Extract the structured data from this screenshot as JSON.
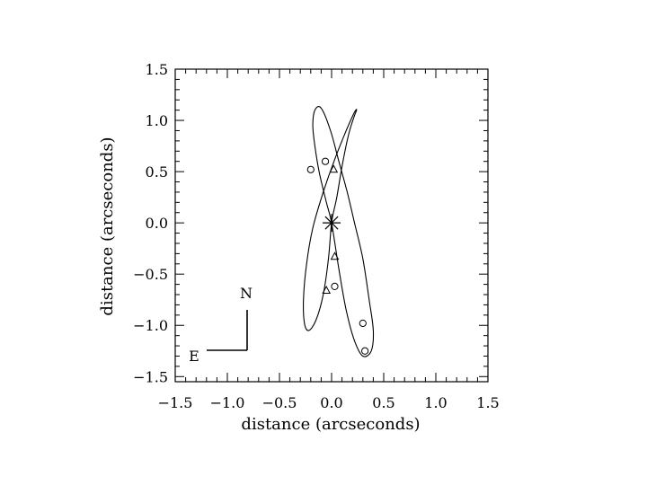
{
  "chart_data": {
    "type": "scatter",
    "title": "",
    "xlabel": "distance (arcseconds)",
    "ylabel": "distance (arcseconds)",
    "xlim": [
      -1.5,
      1.5
    ],
    "ylim": [
      -1.55,
      1.5
    ],
    "xticks": [
      -1.5,
      -1.0,
      -0.5,
      0.0,
      0.5,
      1.0,
      1.5
    ],
    "yticks": [
      -1.5,
      -1.0,
      -0.5,
      0.0,
      0.5,
      1.0,
      1.5
    ],
    "xtick_labels": [
      "−1.5",
      "−1.0",
      "−0.5",
      "0.0",
      "0.5",
      "1.0",
      "1.5"
    ],
    "ytick_labels": [
      "−1.5",
      "−1.0",
      "−0.5",
      "0.0",
      "0.5",
      "1.0",
      "1.5"
    ],
    "grid": false,
    "center_star": {
      "x": 0.0,
      "y": 0.0
    },
    "orbits": [
      {
        "path": [
          [
            0.0,
            0.0
          ],
          [
            -0.05,
            0.2
          ],
          [
            -0.12,
            0.5
          ],
          [
            -0.16,
            0.75
          ],
          [
            -0.18,
            0.95
          ],
          [
            -0.16,
            1.1
          ],
          [
            -0.1,
            1.12
          ],
          [
            -0.01,
            0.9
          ],
          [
            0.07,
            0.6
          ],
          [
            0.15,
            0.3
          ],
          [
            0.22,
            0.0
          ],
          [
            0.3,
            -0.35
          ],
          [
            0.36,
            -0.75
          ],
          [
            0.4,
            -1.05
          ],
          [
            0.38,
            -1.25
          ],
          [
            0.3,
            -1.3
          ],
          [
            0.22,
            -1.15
          ],
          [
            0.14,
            -0.85
          ],
          [
            0.07,
            -0.45
          ],
          [
            0.0,
            0.0
          ]
        ],
        "circles": [
          [
            -0.2,
            0.52
          ],
          [
            0.3,
            -0.98
          ]
        ],
        "triangles": [
          [
            0.02,
            0.52
          ],
          [
            0.03,
            -0.33
          ]
        ]
      },
      {
        "path": [
          [
            0.0,
            0.0
          ],
          [
            0.05,
            0.25
          ],
          [
            0.1,
            0.55
          ],
          [
            0.16,
            0.85
          ],
          [
            0.21,
            1.02
          ],
          [
            0.24,
            1.1
          ],
          [
            0.22,
            1.08
          ],
          [
            0.14,
            0.9
          ],
          [
            0.03,
            0.62
          ],
          [
            -0.08,
            0.3
          ],
          [
            -0.18,
            -0.05
          ],
          [
            -0.24,
            -0.4
          ],
          [
            -0.27,
            -0.75
          ],
          [
            -0.26,
            -0.98
          ],
          [
            -0.22,
            -1.05
          ],
          [
            -0.15,
            -0.95
          ],
          [
            -0.08,
            -0.7
          ],
          [
            -0.03,
            -0.35
          ],
          [
            0.0,
            0.0
          ]
        ],
        "circles": [
          [
            -0.06,
            0.6
          ],
          [
            0.03,
            -0.62
          ],
          [
            0.32,
            -1.25
          ]
        ],
        "triangles": [
          [
            -0.05,
            -0.66
          ]
        ]
      }
    ]
  },
  "compass": {
    "north_label": "N",
    "east_label": "E"
  }
}
